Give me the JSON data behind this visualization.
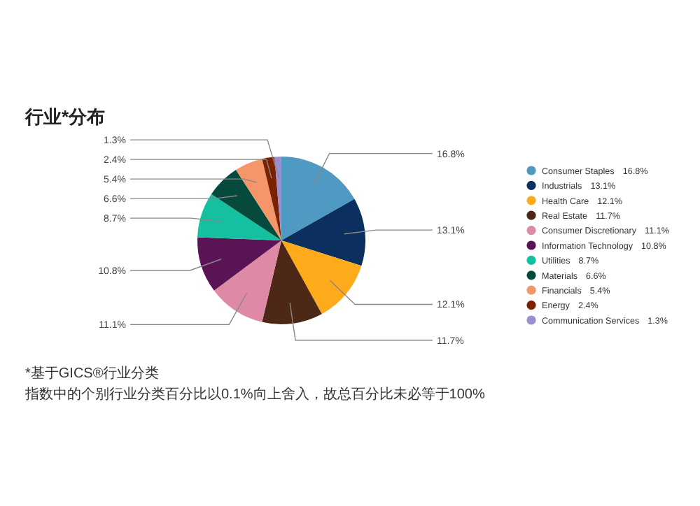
{
  "chart_data": {
    "type": "pie",
    "title": "行业*分布",
    "categories": [
      "Consumer Staples",
      "Industrials",
      "Health Care",
      "Real Estate",
      "Consumer Discretionary",
      "Information Technology",
      "Utilities",
      "Materials",
      "Financials",
      "Energy",
      "Communication Services"
    ],
    "values": [
      16.8,
      13.1,
      12.1,
      11.7,
      11.1,
      10.8,
      8.7,
      6.6,
      5.4,
      2.4,
      1.3
    ],
    "value_labels": [
      "16.8%",
      "13.1%",
      "12.1%",
      "11.7%",
      "11.1%",
      "10.8%",
      "8.7%",
      "6.6%",
      "5.4%",
      "2.4%",
      "1.3%"
    ],
    "colors": [
      "#4e9ac2",
      "#0b2f5e",
      "#fdab1a",
      "#4d2816",
      "#de8aa6",
      "#5a1456",
      "#14c0a0",
      "#064a3e",
      "#f4956a",
      "#7a2200",
      "#9b8fd0"
    ],
    "legend": "right",
    "annotations": [
      "*基于GICS®行业分类",
      "指数中的个别行业分类百分比以0.1%向上舍入，故总百分比未必等于100%"
    ]
  }
}
